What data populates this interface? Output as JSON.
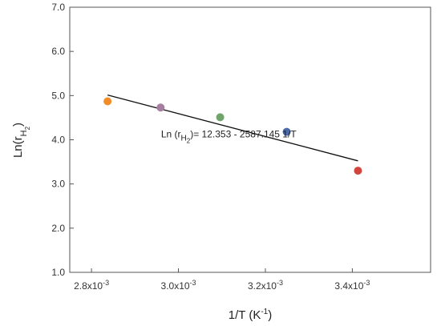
{
  "chart_data": {
    "type": "scatter",
    "title": "",
    "xlabel": {
      "main": "1/T (K",
      "sup": "-1",
      "close": ")"
    },
    "ylabel": {
      "main": "Ln(r",
      "sub1": "H",
      "sub2": "2",
      "close": ")"
    },
    "xlim": [
      0.00275,
      0.00358
    ],
    "ylim": [
      1.0,
      7.0
    ],
    "x_ticks": [
      {
        "value": 0.0028,
        "base": "2.8x10",
        "exp": "-3"
      },
      {
        "value": 0.003,
        "base": "3.0x10",
        "exp": "-3"
      },
      {
        "value": 0.0032,
        "base": "3.2x10",
        "exp": "-3"
      },
      {
        "value": 0.0034,
        "base": "3.4x10",
        "exp": "-3"
      }
    ],
    "y_ticks": [
      {
        "value": 1.0,
        "label": "1.0"
      },
      {
        "value": 2.0,
        "label": "2.0"
      },
      {
        "value": 3.0,
        "label": "3.0"
      },
      {
        "value": 4.0,
        "label": "4.0"
      },
      {
        "value": 5.0,
        "label": "5.0"
      },
      {
        "value": 6.0,
        "label": "6.0"
      },
      {
        "value": 7.0,
        "label": "7.0"
      }
    ],
    "points": [
      {
        "x": 0.002837,
        "y": 4.87,
        "color": "#f28c28"
      },
      {
        "x": 0.002959,
        "y": 4.73,
        "color": "#a57ea0"
      },
      {
        "x": 0.003096,
        "y": 4.51,
        "color": "#6fa56b"
      },
      {
        "x": 0.003249,
        "y": 4.18,
        "color": "#4a6aa8"
      },
      {
        "x": 0.003413,
        "y": 3.3,
        "color": "#d2453d"
      }
    ],
    "fit_line": {
      "intercept": 12.353,
      "slope": -2587.145,
      "x_start": 0.002837,
      "x_end": 0.003413,
      "color": "#111111"
    },
    "annotation": {
      "prefix": "Ln (r",
      "sub1": "H",
      "sub2": "2",
      "suffix": ")= 12.353 - 2587.145 1/T",
      "x": 0.00296,
      "y": 4.05
    },
    "grid": false,
    "legend": "none"
  }
}
